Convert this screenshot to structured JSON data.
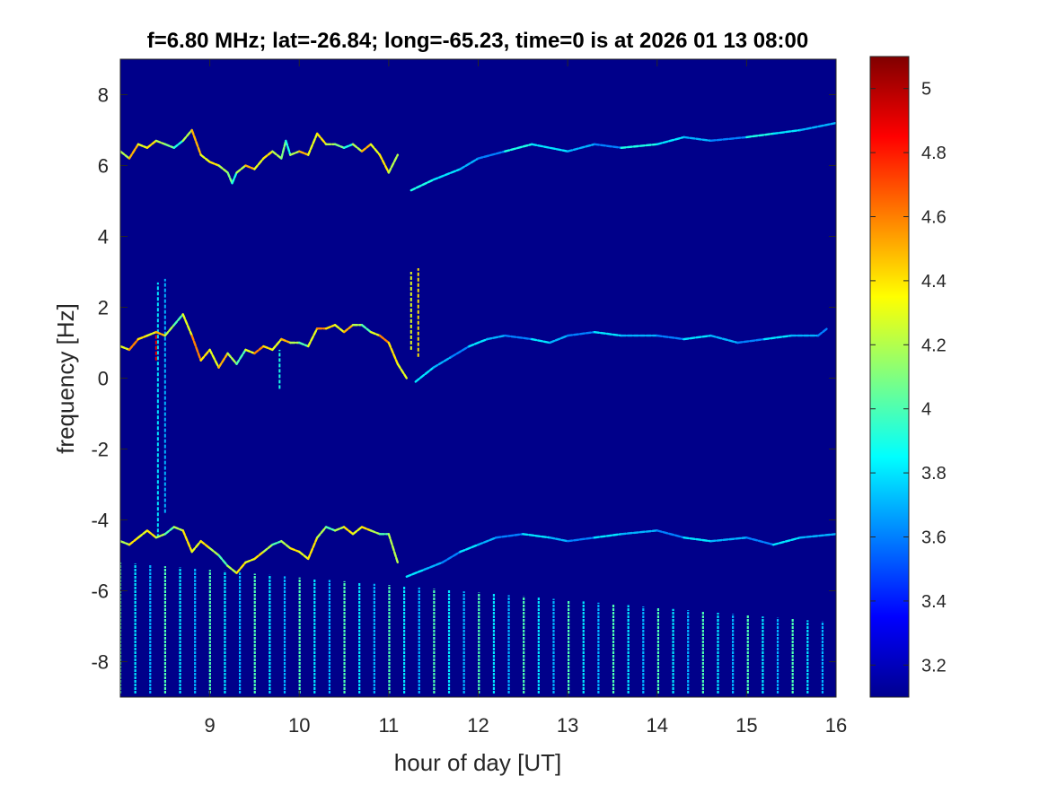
{
  "chart_data": {
    "type": "heatmap",
    "title": "f=6.80 MHz;  lat=-26.84; long=-65.23, time=0 is at 2026 01 13 08:00",
    "xlabel": "hour of day [UT]",
    "ylabel": "frequency [Hz]",
    "xlim": [
      8.0,
      16.0
    ],
    "ylim": [
      -9.0,
      9.0
    ],
    "x_ticks": [
      9,
      10,
      11,
      12,
      13,
      14,
      15,
      16
    ],
    "x_tick_labels": [
      "9",
      "10",
      "11",
      "12",
      "13",
      "14",
      "15",
      "16"
    ],
    "y_ticks": [
      8,
      6,
      4,
      2,
      0,
      -2,
      -4,
      -6,
      -8
    ],
    "y_tick_labels": [
      "8",
      "6",
      "4",
      "2",
      "0",
      "-2",
      "-4",
      "-6",
      "-8"
    ],
    "colorbar": {
      "colormap": "jet",
      "clim": [
        3.1,
        5.1
      ],
      "ticks": [
        5,
        4.8,
        4.6,
        4.4,
        4.2,
        4,
        3.8,
        3.6,
        3.4,
        3.2
      ],
      "tick_labels": [
        "5",
        "4.8",
        "4.6",
        "4.4",
        "4.2",
        "4",
        "3.8",
        "3.6",
        "3.4",
        "3.2"
      ]
    },
    "background_value": 3.12,
    "traces": [
      {
        "values": [
          4.2,
          4.5,
          4.3,
          4.4,
          4.2,
          4.1,
          3.9
        ],
        "points": [
          [
            8.0,
            6.4
          ],
          [
            8.1,
            6.2
          ],
          [
            8.2,
            6.6
          ],
          [
            8.3,
            6.5
          ],
          [
            8.4,
            6.7
          ],
          [
            8.5,
            6.6
          ],
          [
            8.6,
            6.5
          ],
          [
            8.7,
            6.7
          ],
          [
            8.8,
            7.0
          ],
          [
            8.9,
            6.3
          ],
          [
            9.0,
            6.1
          ],
          [
            9.1,
            6.0
          ],
          [
            9.2,
            5.8
          ],
          [
            9.25,
            5.5
          ],
          [
            9.3,
            5.8
          ],
          [
            9.4,
            6.0
          ],
          [
            9.5,
            5.9
          ],
          [
            9.6,
            6.2
          ],
          [
            9.7,
            6.4
          ],
          [
            9.8,
            6.2
          ],
          [
            9.85,
            6.7
          ],
          [
            9.9,
            6.3
          ],
          [
            10.0,
            6.4
          ],
          [
            10.1,
            6.3
          ],
          [
            10.2,
            6.9
          ],
          [
            10.3,
            6.6
          ],
          [
            10.4,
            6.6
          ],
          [
            10.5,
            6.5
          ],
          [
            10.6,
            6.6
          ],
          [
            10.7,
            6.4
          ],
          [
            10.8,
            6.6
          ],
          [
            10.9,
            6.3
          ],
          [
            11.0,
            5.8
          ],
          [
            11.1,
            6.3
          ]
        ]
      },
      {
        "values": [
          3.9,
          3.8,
          3.7,
          3.6
        ],
        "points": [
          [
            11.25,
            5.3
          ],
          [
            11.5,
            5.6
          ],
          [
            11.8,
            5.9
          ],
          [
            12.0,
            6.2
          ],
          [
            12.3,
            6.4
          ],
          [
            12.6,
            6.6
          ],
          [
            13.0,
            6.4
          ],
          [
            13.3,
            6.6
          ],
          [
            13.6,
            6.5
          ],
          [
            14.0,
            6.6
          ],
          [
            14.3,
            6.8
          ],
          [
            14.6,
            6.7
          ],
          [
            15.0,
            6.8
          ],
          [
            15.3,
            6.9
          ],
          [
            15.6,
            7.0
          ],
          [
            16.0,
            7.2
          ]
        ]
      },
      {
        "values": [
          4.3,
          4.6,
          4.4,
          4.3,
          4.5,
          4.2,
          4.0
        ],
        "points": [
          [
            8.0,
            0.9
          ],
          [
            8.1,
            0.8
          ],
          [
            8.2,
            1.1
          ],
          [
            8.3,
            1.2
          ],
          [
            8.4,
            1.3
          ],
          [
            8.5,
            1.2
          ],
          [
            8.6,
            1.5
          ],
          [
            8.7,
            1.8
          ],
          [
            8.8,
            1.2
          ],
          [
            8.9,
            0.5
          ],
          [
            9.0,
            0.8
          ],
          [
            9.1,
            0.3
          ],
          [
            9.2,
            0.7
          ],
          [
            9.3,
            0.4
          ],
          [
            9.4,
            0.8
          ],
          [
            9.5,
            0.7
          ],
          [
            9.6,
            0.9
          ],
          [
            9.7,
            0.8
          ],
          [
            9.8,
            1.1
          ],
          [
            9.9,
            1.0
          ],
          [
            10.0,
            1.0
          ],
          [
            10.1,
            0.9
          ],
          [
            10.2,
            1.4
          ],
          [
            10.3,
            1.4
          ],
          [
            10.4,
            1.5
          ],
          [
            10.5,
            1.3
          ],
          [
            10.6,
            1.5
          ],
          [
            10.7,
            1.5
          ],
          [
            10.8,
            1.3
          ],
          [
            10.9,
            1.2
          ],
          [
            11.0,
            1.0
          ],
          [
            11.1,
            0.4
          ],
          [
            11.2,
            0.0
          ]
        ]
      },
      {
        "values": [
          3.8,
          3.7,
          3.6
        ],
        "points": [
          [
            11.3,
            -0.1
          ],
          [
            11.5,
            0.3
          ],
          [
            11.7,
            0.6
          ],
          [
            11.9,
            0.9
          ],
          [
            12.1,
            1.1
          ],
          [
            12.3,
            1.2
          ],
          [
            12.6,
            1.1
          ],
          [
            12.8,
            1.0
          ],
          [
            13.0,
            1.2
          ],
          [
            13.3,
            1.3
          ],
          [
            13.6,
            1.2
          ],
          [
            14.0,
            1.2
          ],
          [
            14.3,
            1.1
          ],
          [
            14.6,
            1.2
          ],
          [
            14.9,
            1.0
          ],
          [
            15.2,
            1.1
          ],
          [
            15.5,
            1.2
          ],
          [
            15.8,
            1.2
          ],
          [
            15.9,
            1.4
          ]
        ]
      },
      {
        "values": [
          4.2,
          4.4,
          4.3,
          4.4,
          4.2,
          4.0
        ],
        "points": [
          [
            8.0,
            -4.6
          ],
          [
            8.1,
            -4.7
          ],
          [
            8.2,
            -4.5
          ],
          [
            8.3,
            -4.3
          ],
          [
            8.4,
            -4.5
          ],
          [
            8.5,
            -4.4
          ],
          [
            8.6,
            -4.2
          ],
          [
            8.7,
            -4.3
          ],
          [
            8.8,
            -4.9
          ],
          [
            8.9,
            -4.6
          ],
          [
            9.0,
            -4.8
          ],
          [
            9.1,
            -5.0
          ],
          [
            9.2,
            -5.3
          ],
          [
            9.3,
            -5.5
          ],
          [
            9.4,
            -5.2
          ],
          [
            9.5,
            -5.1
          ],
          [
            9.6,
            -4.9
          ],
          [
            9.7,
            -4.7
          ],
          [
            9.8,
            -4.6
          ],
          [
            9.9,
            -4.8
          ],
          [
            10.0,
            -4.9
          ],
          [
            10.1,
            -5.1
          ],
          [
            10.2,
            -4.5
          ],
          [
            10.3,
            -4.2
          ],
          [
            10.4,
            -4.3
          ],
          [
            10.5,
            -4.2
          ],
          [
            10.6,
            -4.4
          ],
          [
            10.7,
            -4.2
          ],
          [
            10.8,
            -4.3
          ],
          [
            10.9,
            -4.4
          ],
          [
            11.0,
            -4.4
          ],
          [
            11.1,
            -5.2
          ]
        ]
      },
      {
        "values": [
          3.8,
          3.7,
          3.6
        ],
        "points": [
          [
            11.2,
            -5.6
          ],
          [
            11.4,
            -5.4
          ],
          [
            11.6,
            -5.2
          ],
          [
            11.8,
            -4.9
          ],
          [
            12.0,
            -4.7
          ],
          [
            12.2,
            -4.5
          ],
          [
            12.5,
            -4.4
          ],
          [
            12.8,
            -4.5
          ],
          [
            13.0,
            -4.6
          ],
          [
            13.3,
            -4.5
          ],
          [
            13.6,
            -4.4
          ],
          [
            14.0,
            -4.3
          ],
          [
            14.3,
            -4.5
          ],
          [
            14.6,
            -4.6
          ],
          [
            15.0,
            -4.5
          ],
          [
            15.3,
            -4.7
          ],
          [
            15.6,
            -4.5
          ],
          [
            16.0,
            -4.4
          ]
        ]
      }
    ],
    "vertical_lines": {
      "x_start": 8.0,
      "spacing_hours": 0.167,
      "y_bottom": -8.9,
      "y_top_start": -5.2,
      "y_top_end": -6.9,
      "values": [
        4.0,
        3.8,
        3.7
      ]
    },
    "spikes": [
      {
        "x": 8.42,
        "y_from": -4.5,
        "y_to": 2.7,
        "value": 3.8
      },
      {
        "x": 8.5,
        "y_from": -3.8,
        "y_to": 2.8,
        "value": 3.7
      },
      {
        "x": 8.4,
        "y_from": 0.5,
        "y_to": 1.3,
        "value": 4.9
      },
      {
        "x": 9.78,
        "y_from": -0.3,
        "y_to": 0.8,
        "value": 3.9
      },
      {
        "x": 11.25,
        "y_from": 0.8,
        "y_to": 3.0,
        "value": 4.3
      },
      {
        "x": 11.33,
        "y_from": 0.6,
        "y_to": 3.1,
        "value": 4.4
      }
    ]
  }
}
